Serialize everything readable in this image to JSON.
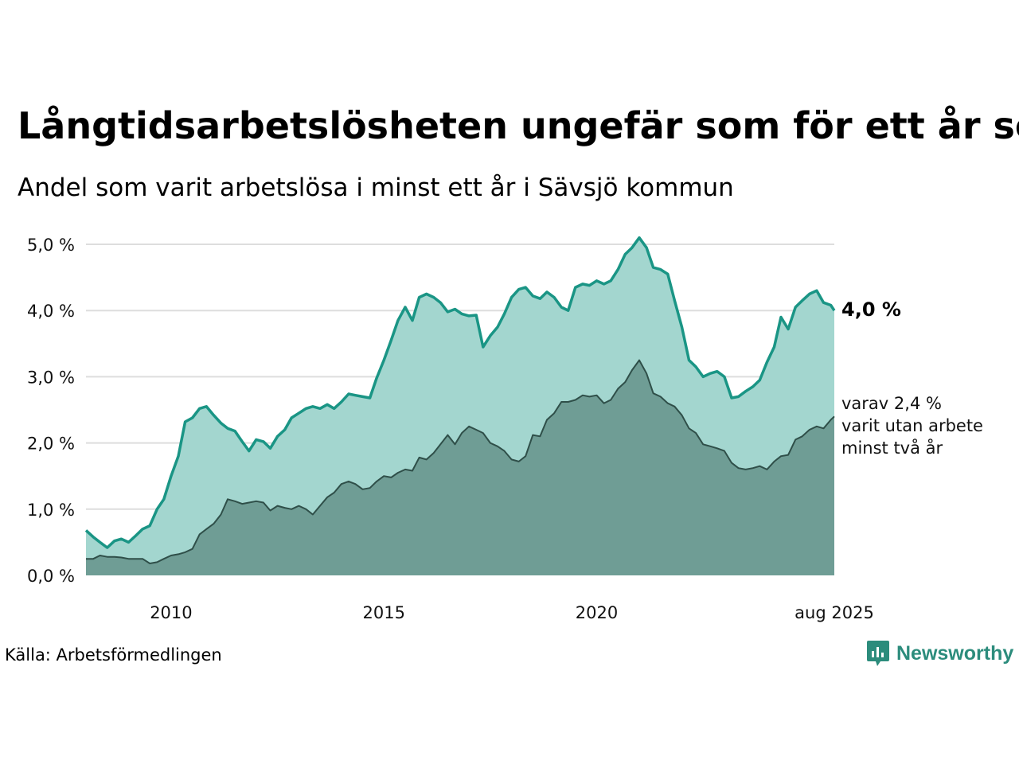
{
  "title": "Långtidsarbetslösheten ungefär som för ett år sen",
  "subtitle": "Andel som varit arbetslösa i minst ett år i Sävsjö kommun",
  "source": "Källa: Arbetsförmedlingen",
  "brand": "Newsworthy",
  "colors": {
    "upper_line": "#1a9585",
    "upper_fill": "#a3d6cf",
    "lower_fill": "#6f9d95",
    "lower_line": "#2f4f49",
    "grid": "#dddddd",
    "brand": "#2c8c7c"
  },
  "chart_data": {
    "type": "area",
    "xlim": [
      2008.0,
      2025.583
    ],
    "ylim": [
      0,
      5
    ],
    "y_ticks": [
      0,
      1,
      2,
      3,
      4,
      5
    ],
    "y_tick_labels": [
      "0,0 %",
      "1,0 %",
      "2,0 %",
      "3,0 %",
      "4,0 %",
      "5,0 %"
    ],
    "x_ticks": [
      2010,
      2015,
      2020,
      2025.583
    ],
    "x_tick_labels": [
      "2010",
      "2015",
      "2020",
      "aug 2025"
    ],
    "grid": true,
    "end_label": "4,0 %",
    "note_lines": [
      "varav 2,4 %",
      "varit utan arbete",
      "minst två år"
    ],
    "series": [
      {
        "name": "minst ett år",
        "points": [
          [
            2008.0,
            0.68
          ],
          [
            2008.17,
            0.58
          ],
          [
            2008.33,
            0.5
          ],
          [
            2008.5,
            0.42
          ],
          [
            2008.67,
            0.52
          ],
          [
            2008.83,
            0.55
          ],
          [
            2009.0,
            0.5
          ],
          [
            2009.17,
            0.6
          ],
          [
            2009.33,
            0.7
          ],
          [
            2009.5,
            0.75
          ],
          [
            2009.67,
            1.0
          ],
          [
            2009.83,
            1.15
          ],
          [
            2010.0,
            1.5
          ],
          [
            2010.17,
            1.8
          ],
          [
            2010.33,
            2.32
          ],
          [
            2010.5,
            2.38
          ],
          [
            2010.67,
            2.52
          ],
          [
            2010.83,
            2.55
          ],
          [
            2011.0,
            2.42
          ],
          [
            2011.17,
            2.3
          ],
          [
            2011.33,
            2.22
          ],
          [
            2011.5,
            2.18
          ],
          [
            2011.67,
            2.02
          ],
          [
            2011.83,
            1.88
          ],
          [
            2012.0,
            2.05
          ],
          [
            2012.17,
            2.02
          ],
          [
            2012.33,
            1.92
          ],
          [
            2012.5,
            2.1
          ],
          [
            2012.67,
            2.2
          ],
          [
            2012.83,
            2.38
          ],
          [
            2013.0,
            2.45
          ],
          [
            2013.17,
            2.52
          ],
          [
            2013.33,
            2.55
          ],
          [
            2013.5,
            2.52
          ],
          [
            2013.67,
            2.58
          ],
          [
            2013.83,
            2.52
          ],
          [
            2014.0,
            2.62
          ],
          [
            2014.17,
            2.74
          ],
          [
            2014.33,
            2.72
          ],
          [
            2014.5,
            2.7
          ],
          [
            2014.67,
            2.68
          ],
          [
            2014.83,
            2.98
          ],
          [
            2015.0,
            3.25
          ],
          [
            2015.17,
            3.55
          ],
          [
            2015.33,
            3.85
          ],
          [
            2015.5,
            4.05
          ],
          [
            2015.67,
            3.85
          ],
          [
            2015.83,
            4.2
          ],
          [
            2016.0,
            4.25
          ],
          [
            2016.17,
            4.2
          ],
          [
            2016.33,
            4.12
          ],
          [
            2016.5,
            3.98
          ],
          [
            2016.67,
            4.02
          ],
          [
            2016.83,
            3.95
          ],
          [
            2017.0,
            3.92
          ],
          [
            2017.17,
            3.93
          ],
          [
            2017.33,
            3.45
          ],
          [
            2017.5,
            3.62
          ],
          [
            2017.67,
            3.75
          ],
          [
            2017.83,
            3.95
          ],
          [
            2018.0,
            4.2
          ],
          [
            2018.17,
            4.32
          ],
          [
            2018.33,
            4.35
          ],
          [
            2018.5,
            4.22
          ],
          [
            2018.67,
            4.18
          ],
          [
            2018.83,
            4.28
          ],
          [
            2019.0,
            4.2
          ],
          [
            2019.17,
            4.05
          ],
          [
            2019.33,
            4.0
          ],
          [
            2019.5,
            4.35
          ],
          [
            2019.67,
            4.4
          ],
          [
            2019.83,
            4.38
          ],
          [
            2020.0,
            4.45
          ],
          [
            2020.17,
            4.4
          ],
          [
            2020.33,
            4.45
          ],
          [
            2020.5,
            4.62
          ],
          [
            2020.67,
            4.85
          ],
          [
            2020.83,
            4.95
          ],
          [
            2021.0,
            5.1
          ],
          [
            2021.17,
            4.95
          ],
          [
            2021.33,
            4.65
          ],
          [
            2021.5,
            4.62
          ],
          [
            2021.67,
            4.55
          ],
          [
            2021.83,
            4.15
          ],
          [
            2022.0,
            3.75
          ],
          [
            2022.17,
            3.25
          ],
          [
            2022.33,
            3.15
          ],
          [
            2022.5,
            3.0
          ],
          [
            2022.67,
            3.05
          ],
          [
            2022.83,
            3.08
          ],
          [
            2023.0,
            3.0
          ],
          [
            2023.17,
            2.68
          ],
          [
            2023.33,
            2.7
          ],
          [
            2023.5,
            2.78
          ],
          [
            2023.67,
            2.85
          ],
          [
            2023.83,
            2.95
          ],
          [
            2024.0,
            3.22
          ],
          [
            2024.17,
            3.45
          ],
          [
            2024.33,
            3.9
          ],
          [
            2024.5,
            3.72
          ],
          [
            2024.67,
            4.05
          ],
          [
            2024.83,
            4.15
          ],
          [
            2025.0,
            4.25
          ],
          [
            2025.17,
            4.3
          ],
          [
            2025.33,
            4.12
          ],
          [
            2025.5,
            4.08
          ],
          [
            2025.583,
            4.0
          ]
        ]
      },
      {
        "name": "minst två år",
        "points": [
          [
            2008.0,
            0.25
          ],
          [
            2008.17,
            0.25
          ],
          [
            2008.33,
            0.3
          ],
          [
            2008.5,
            0.28
          ],
          [
            2008.67,
            0.28
          ],
          [
            2008.83,
            0.27
          ],
          [
            2009.0,
            0.25
          ],
          [
            2009.17,
            0.25
          ],
          [
            2009.33,
            0.25
          ],
          [
            2009.5,
            0.18
          ],
          [
            2009.67,
            0.2
          ],
          [
            2009.83,
            0.25
          ],
          [
            2010.0,
            0.3
          ],
          [
            2010.17,
            0.32
          ],
          [
            2010.33,
            0.35
          ],
          [
            2010.5,
            0.4
          ],
          [
            2010.67,
            0.62
          ],
          [
            2010.83,
            0.7
          ],
          [
            2011.0,
            0.78
          ],
          [
            2011.17,
            0.92
          ],
          [
            2011.33,
            1.15
          ],
          [
            2011.5,
            1.12
          ],
          [
            2011.67,
            1.08
          ],
          [
            2011.83,
            1.1
          ],
          [
            2012.0,
            1.12
          ],
          [
            2012.17,
            1.1
          ],
          [
            2012.33,
            0.98
          ],
          [
            2012.5,
            1.05
          ],
          [
            2012.67,
            1.02
          ],
          [
            2012.83,
            1.0
          ],
          [
            2013.0,
            1.05
          ],
          [
            2013.17,
            1.0
          ],
          [
            2013.33,
            0.92
          ],
          [
            2013.5,
            1.05
          ],
          [
            2013.67,
            1.18
          ],
          [
            2013.83,
            1.25
          ],
          [
            2014.0,
            1.38
          ],
          [
            2014.17,
            1.42
          ],
          [
            2014.33,
            1.38
          ],
          [
            2014.5,
            1.3
          ],
          [
            2014.67,
            1.32
          ],
          [
            2014.83,
            1.42
          ],
          [
            2015.0,
            1.5
          ],
          [
            2015.17,
            1.48
          ],
          [
            2015.33,
            1.55
          ],
          [
            2015.5,
            1.6
          ],
          [
            2015.67,
            1.58
          ],
          [
            2015.83,
            1.78
          ],
          [
            2016.0,
            1.75
          ],
          [
            2016.17,
            1.85
          ],
          [
            2016.33,
            1.98
          ],
          [
            2016.5,
            2.12
          ],
          [
            2016.67,
            1.98
          ],
          [
            2016.83,
            2.15
          ],
          [
            2017.0,
            2.25
          ],
          [
            2017.17,
            2.2
          ],
          [
            2017.33,
            2.15
          ],
          [
            2017.5,
            2.0
          ],
          [
            2017.67,
            1.95
          ],
          [
            2017.83,
            1.88
          ],
          [
            2018.0,
            1.75
          ],
          [
            2018.17,
            1.72
          ],
          [
            2018.33,
            1.8
          ],
          [
            2018.5,
            2.12
          ],
          [
            2018.67,
            2.1
          ],
          [
            2018.83,
            2.35
          ],
          [
            2019.0,
            2.45
          ],
          [
            2019.17,
            2.62
          ],
          [
            2019.33,
            2.62
          ],
          [
            2019.5,
            2.65
          ],
          [
            2019.67,
            2.72
          ],
          [
            2019.83,
            2.7
          ],
          [
            2020.0,
            2.72
          ],
          [
            2020.17,
            2.6
          ],
          [
            2020.33,
            2.65
          ],
          [
            2020.5,
            2.82
          ],
          [
            2020.67,
            2.92
          ],
          [
            2020.83,
            3.1
          ],
          [
            2021.0,
            3.25
          ],
          [
            2021.17,
            3.05
          ],
          [
            2021.33,
            2.75
          ],
          [
            2021.5,
            2.7
          ],
          [
            2021.67,
            2.6
          ],
          [
            2021.83,
            2.55
          ],
          [
            2022.0,
            2.42
          ],
          [
            2022.17,
            2.22
          ],
          [
            2022.33,
            2.15
          ],
          [
            2022.5,
            1.98
          ],
          [
            2022.67,
            1.95
          ],
          [
            2022.83,
            1.92
          ],
          [
            2023.0,
            1.88
          ],
          [
            2023.17,
            1.7
          ],
          [
            2023.33,
            1.62
          ],
          [
            2023.5,
            1.6
          ],
          [
            2023.67,
            1.62
          ],
          [
            2023.83,
            1.65
          ],
          [
            2024.0,
            1.6
          ],
          [
            2024.17,
            1.72
          ],
          [
            2024.33,
            1.8
          ],
          [
            2024.5,
            1.82
          ],
          [
            2024.67,
            2.05
          ],
          [
            2024.83,
            2.1
          ],
          [
            2025.0,
            2.2
          ],
          [
            2025.17,
            2.25
          ],
          [
            2025.33,
            2.22
          ],
          [
            2025.5,
            2.35
          ],
          [
            2025.583,
            2.4
          ]
        ]
      }
    ]
  }
}
